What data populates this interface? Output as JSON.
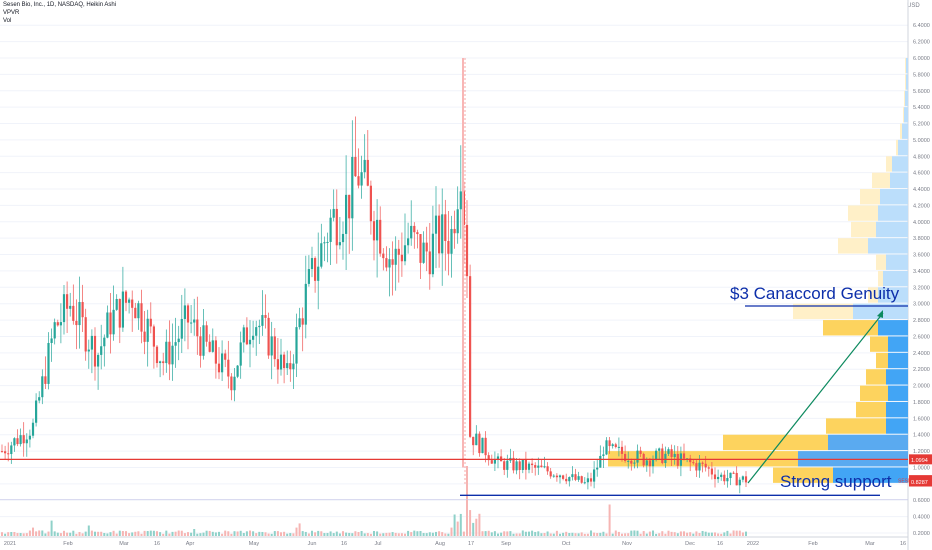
{
  "header": {
    "title": "Sesen Bio, Inc., 1D, NASDAQ, Heikin Ashi",
    "indicator1": "VPVR",
    "indicator2": "Vol",
    "currency": "USD"
  },
  "chart_data": {
    "type": "candlestick",
    "ylim": [
      0.2,
      6.2
    ],
    "y_ticks": [
      "0.2000",
      "0.4000",
      "0.6000",
      "0.8000",
      "1.0000",
      "1.2000",
      "1.4000",
      "1.6000",
      "1.8000",
      "2.0000",
      "2.2000",
      "2.4000",
      "2.6000",
      "2.8000",
      "3.0000",
      "3.2000",
      "3.4000",
      "3.6000",
      "3.8000",
      "4.0000",
      "4.2000",
      "4.4000",
      "4.6000",
      "4.8000",
      "5.0000",
      "5.2000",
      "5.4000",
      "5.6000",
      "5.8000",
      "6.0000",
      "6.2000",
      "6.4000"
    ],
    "x_ticks": [
      "2021",
      "Feb",
      "Mar",
      "16",
      "Apr",
      "May",
      "Jun",
      "16",
      "Jul",
      "Aug",
      "17",
      "Sep",
      "Oct",
      "Nov",
      "Dec",
      "16",
      "2022",
      "Feb",
      "Mar",
      "16"
    ],
    "price_path": [
      [
        0,
        1.2
      ],
      [
        10,
        1.5
      ],
      [
        17,
        2.7
      ],
      [
        22,
        3.0
      ],
      [
        29,
        2.5
      ],
      [
        31,
        2.4
      ],
      [
        35,
        2.8
      ],
      [
        42,
        3.1
      ],
      [
        52,
        2.3
      ],
      [
        56,
        2.55
      ],
      [
        60,
        2.8
      ],
      [
        67,
        2.4
      ],
      [
        74,
        2.1
      ],
      [
        81,
        2.85
      ],
      [
        87,
        2.5
      ],
      [
        92,
        2.1
      ],
      [
        98,
        3.1
      ],
      [
        106,
        4.0
      ],
      [
        111,
        4.2
      ],
      [
        115,
        4.6
      ],
      [
        121,
        4.0
      ],
      [
        126,
        3.5
      ],
      [
        131,
        3.8
      ],
      [
        136,
        3.6
      ],
      [
        141,
        3.8
      ],
      [
        145,
        3.85
      ],
      [
        148,
        4.8
      ],
      [
        150,
        3.5
      ],
      [
        151,
        1.4
      ],
      [
        155,
        1.25
      ],
      [
        160,
        1.05
      ],
      [
        170,
        1.0
      ],
      [
        180,
        0.93
      ],
      [
        188,
        0.8
      ],
      [
        190,
        0.85
      ],
      [
        193,
        1.1
      ],
      [
        194,
        1.25
      ],
      [
        196,
        1.2
      ],
      [
        203,
        1.15
      ],
      [
        207,
        1.1
      ],
      [
        214,
        1.15
      ],
      [
        222,
        1.05
      ],
      [
        227,
        1.0
      ],
      [
        231,
        0.9
      ],
      [
        236,
        0.86
      ],
      [
        240,
        0.85
      ]
    ],
    "volume_spikes": [
      [
        150,
        1.0
      ],
      [
        196,
        0.45
      ],
      [
        96,
        0.18
      ],
      [
        10,
        0.12
      ],
      [
        16,
        0.22
      ],
      [
        28,
        0.15
      ],
      [
        62,
        0.1
      ],
      [
        95,
        0.12
      ],
      [
        145,
        0.12
      ]
    ],
    "vpvr": [
      {
        "price": 1.3,
        "up": 105,
        "down": 80
      },
      {
        "price": 1.1,
        "up": 190,
        "down": 110
      },
      {
        "price": 0.9,
        "up": 60,
        "down": 75
      },
      {
        "price": 1.5,
        "up": 60,
        "down": 22
      },
      {
        "price": 1.7,
        "up": 30,
        "down": 22
      },
      {
        "price": 1.9,
        "up": 28,
        "down": 20
      },
      {
        "price": 2.1,
        "up": 20,
        "down": 22
      },
      {
        "price": 2.3,
        "up": 12,
        "down": 20
      },
      {
        "price": 2.5,
        "up": 18,
        "down": 20
      },
      {
        "price": 2.7,
        "up": 55,
        "down": 30
      },
      {
        "price": 2.9,
        "up": 60,
        "down": 55
      },
      {
        "price": 3.1,
        "up": 10,
        "down": 30
      },
      {
        "price": 3.3,
        "up": 5,
        "down": 25
      },
      {
        "price": 3.5,
        "up": 10,
        "down": 22
      },
      {
        "price": 3.7,
        "up": 30,
        "down": 40
      },
      {
        "price": 3.9,
        "up": 25,
        "down": 32
      },
      {
        "price": 4.1,
        "up": 30,
        "down": 30
      },
      {
        "price": 4.3,
        "up": 20,
        "down": 28
      },
      {
        "price": 4.5,
        "up": 18,
        "down": 18
      },
      {
        "price": 4.7,
        "up": 6,
        "down": 16
      },
      {
        "price": 4.9,
        "up": 2,
        "down": 10
      },
      {
        "price": 5.1,
        "up": 2,
        "down": 6
      },
      {
        "price": 5.3,
        "up": 1,
        "down": 4
      },
      {
        "price": 5.5,
        "up": 1,
        "down": 3
      },
      {
        "price": 5.7,
        "up": 1,
        "down": 2
      },
      {
        "price": 5.9,
        "up": 1,
        "down": 2
      }
    ],
    "current_price": {
      "label": "1.0994",
      "value": 1.0994
    },
    "last_price": {
      "label": "0.8457",
      "value": 0.8457,
      "ticker": "SESN"
    },
    "last_price2": {
      "label": "0.8287",
      "value": 0.8287
    },
    "red_resistance_value": 1.0994,
    "support_value": 0.66,
    "annotations": {
      "target_text": "$3  Canaccord Genuity",
      "support_text": "Strong support"
    }
  }
}
